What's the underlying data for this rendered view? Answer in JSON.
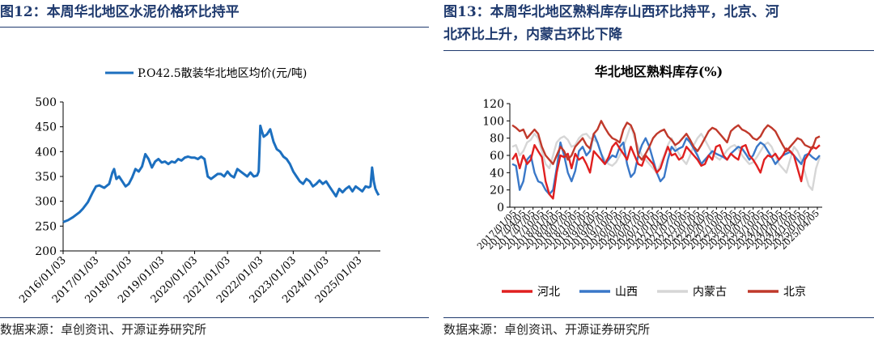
{
  "left": {
    "fig_title": "图12：本周华北地区水泥价格环比持平",
    "source": "数据来源：卓创资讯、开源证券研究所",
    "legend": "P.O42.5散装华北地区均价(元/吨)",
    "colors": {
      "line": "#1c6fbf",
      "title": "#1f3a6e"
    },
    "chart_data": {
      "type": "line",
      "title": "",
      "xlabel": "",
      "ylabel": "",
      "ylim": [
        200,
        500
      ],
      "y_ticks": [
        200,
        250,
        300,
        350,
        400,
        450,
        500
      ],
      "x_ticks": [
        "2016/01/03",
        "2017/01/03",
        "2018/01/03",
        "2019/01/03",
        "2020/01/03",
        "2021/01/03",
        "2022/01/03",
        "2023/01/03",
        "2024/01/03",
        "2025/01/03"
      ],
      "legend_position": "top",
      "grid": false,
      "series": [
        {
          "name": "P.O42.5散装华北地区均价(元/吨)",
          "x": [
            2016.0,
            2016.15,
            2016.3,
            2016.5,
            2016.6,
            2016.75,
            2016.9,
            2017.0,
            2017.1,
            2017.25,
            2017.4,
            2017.5,
            2017.55,
            2017.62,
            2017.7,
            2017.8,
            2017.9,
            2018.0,
            2018.1,
            2018.2,
            2018.3,
            2018.4,
            2018.5,
            2018.6,
            2018.7,
            2018.8,
            2018.9,
            2019.0,
            2019.1,
            2019.2,
            2019.3,
            2019.4,
            2019.5,
            2019.6,
            2019.7,
            2019.8,
            2019.9,
            2020.0,
            2020.1,
            2020.2,
            2020.3,
            2020.4,
            2020.5,
            2020.6,
            2020.7,
            2020.8,
            2020.9,
            2021.0,
            2021.1,
            2021.2,
            2021.3,
            2021.4,
            2021.5,
            2021.6,
            2021.7,
            2021.8,
            2021.9,
            2021.95,
            2022.0,
            2022.05,
            2022.1,
            2022.2,
            2022.3,
            2022.4,
            2022.5,
            2022.6,
            2022.7,
            2022.8,
            2022.9,
            2023.0,
            2023.1,
            2023.2,
            2023.3,
            2023.4,
            2023.5,
            2023.6,
            2023.7,
            2023.8,
            2023.9,
            2024.0,
            2024.1,
            2024.2,
            2024.3,
            2024.4,
            2024.5,
            2024.6,
            2024.7,
            2024.8,
            2024.9,
            2025.0,
            2025.1,
            2025.2,
            2025.3,
            2025.35,
            2025.4,
            2025.45,
            2025.5,
            2025.55,
            2025.6
          ],
          "values": [
            258,
            262,
            268,
            278,
            285,
            298,
            318,
            330,
            332,
            327,
            335,
            358,
            365,
            345,
            350,
            340,
            330,
            335,
            348,
            365,
            360,
            370,
            395,
            385,
            368,
            380,
            385,
            378,
            380,
            375,
            380,
            378,
            385,
            382,
            388,
            390,
            388,
            388,
            385,
            390,
            385,
            350,
            345,
            350,
            355,
            355,
            350,
            360,
            352,
            348,
            365,
            360,
            355,
            350,
            358,
            350,
            352,
            360,
            452,
            440,
            430,
            435,
            445,
            420,
            405,
            400,
            390,
            385,
            375,
            360,
            350,
            340,
            335,
            345,
            340,
            330,
            335,
            342,
            335,
            340,
            330,
            320,
            310,
            325,
            318,
            325,
            330,
            320,
            330,
            325,
            320,
            330,
            328,
            330,
            368,
            340,
            325,
            318,
            312
          ]
        }
      ]
    }
  },
  "right": {
    "fig_title_line1": "图13：本周华北地区熟料库存山西环比持平，北京、河",
    "fig_title_line2": "北环比上升，内蒙古环比下降",
    "source": "数据来源：卓创资讯、开源证券研究所",
    "colors": {
      "hebei": "#e02020",
      "shanxi": "#3a78c8",
      "neimenggu": "#d6d6d6",
      "beijing": "#c0392b",
      "title": "#1f3a6e"
    },
    "chart_data": {
      "type": "line",
      "title": "华北地区熟料库存(%)",
      "xlabel": "",
      "ylabel": "",
      "ylim": [
        0,
        120
      ],
      "y_ticks": [
        0,
        20,
        40,
        60,
        80,
        100,
        120
      ],
      "x_ticks": [
        "2017/01/05",
        "2017/04/05",
        "2017/07/05",
        "2017/10/05",
        "2018/01/05",
        "2018/04/05",
        "2018/07/05",
        "2018/10/05",
        "2019/01/05",
        "2019/04/05",
        "2019/07/05",
        "2019/10/05",
        "2020/01/05",
        "2020/04/05",
        "2020/07/05",
        "2020/10/05",
        "2021/01/05",
        "2021/04/05",
        "2021/07/05",
        "2021/10/05",
        "2022/01/05",
        "2022/04/05",
        "2022/07/05",
        "2022/10/05",
        "2023/01/05",
        "2023/04/05",
        "2023/07/05",
        "2023/10/05",
        "2024/01/05",
        "2024/04/05",
        "2024/07/05",
        "2024/10/05",
        "2025/01/05",
        "2025/04/05"
      ],
      "legend_position": "bottom",
      "grid": false,
      "series": [
        {
          "name": "河北",
          "values": [
            55,
            62,
            45,
            60,
            50,
            55,
            72,
            65,
            58,
            30,
            15,
            10,
            40,
            60,
            58,
            62,
            45,
            62,
            55,
            58,
            50,
            40,
            65,
            60,
            55,
            50,
            58,
            70,
            75,
            68,
            62,
            55,
            70,
            60,
            50,
            48,
            60,
            55,
            50,
            40,
            45,
            58,
            70,
            60,
            62,
            55,
            58,
            70,
            65,
            60,
            55,
            48,
            50,
            60,
            55,
            70,
            72,
            60,
            55,
            62,
            58,
            55,
            70,
            72,
            60,
            55,
            48,
            40,
            55,
            60,
            58,
            62,
            55,
            60,
            68,
            65,
            60,
            45,
            30,
            55,
            62,
            70,
            68,
            72
          ]
        },
        {
          "name": "山西",
          "values": [
            50,
            48,
            20,
            30,
            55,
            60,
            40,
            30,
            28,
            20,
            15,
            20,
            45,
            75,
            60,
            40,
            30,
            42,
            65,
            70,
            60,
            65,
            85,
            75,
            62,
            50,
            55,
            60,
            58,
            70,
            75,
            50,
            35,
            40,
            60,
            72,
            80,
            70,
            55,
            40,
            30,
            35,
            55,
            70,
            65,
            68,
            70,
            80,
            75,
            68,
            60,
            50,
            55,
            60,
            65,
            62,
            60,
            58,
            55,
            62,
            66,
            70,
            68,
            62,
            55,
            60,
            70,
            75,
            72,
            65,
            58,
            50,
            55,
            60,
            62,
            64,
            60,
            55,
            50,
            60,
            62,
            58,
            55,
            60
          ]
        },
        {
          "name": "内蒙古",
          "values": [
            70,
            72,
            60,
            65,
            75,
            78,
            85,
            80,
            65,
            50,
            45,
            60,
            75,
            80,
            82,
            78,
            70,
            72,
            80,
            84,
            85,
            80,
            78,
            75,
            62,
            55,
            50,
            48,
            52,
            60,
            70,
            82,
            95,
            80,
            70,
            60,
            55,
            50,
            45,
            40,
            50,
            60,
            72,
            80,
            70,
            62,
            55,
            50,
            60,
            72,
            80,
            85,
            78,
            70,
            62,
            58,
            55,
            60,
            66,
            70,
            72,
            68,
            60,
            55,
            50,
            52,
            58,
            65,
            72,
            75,
            70,
            60,
            50,
            45,
            40,
            55,
            70,
            65,
            55,
            40,
            25,
            20,
            45,
            58
          ]
        },
        {
          "name": "北京",
          "values": [
            95,
            92,
            88,
            90,
            80,
            85,
            90,
            85,
            70,
            60,
            55,
            50,
            60,
            70,
            65,
            55,
            60,
            70,
            75,
            80,
            72,
            68,
            85,
            90,
            100,
            92,
            85,
            80,
            78,
            75,
            90,
            98,
            95,
            85,
            60,
            55,
            62,
            70,
            80,
            85,
            88,
            90,
            82,
            78,
            72,
            75,
            80,
            85,
            78,
            70,
            65,
            72,
            80,
            88,
            92,
            90,
            85,
            80,
            75,
            88,
            92,
            95,
            90,
            88,
            85,
            80,
            78,
            82,
            90,
            95,
            92,
            88,
            80,
            72,
            65,
            70,
            75,
            80,
            78,
            72,
            70,
            68,
            80,
            82
          ]
        }
      ]
    }
  }
}
